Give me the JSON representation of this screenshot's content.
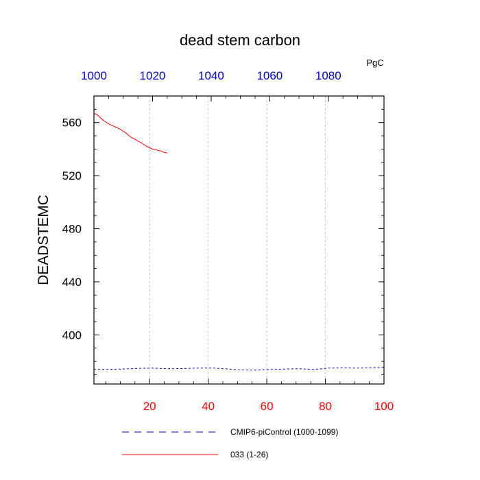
{
  "chart_data": {
    "type": "line",
    "title": "dead stem carbon",
    "units": "PgC",
    "ylabel": "DEADSTEMC",
    "xlabel": "",
    "bottom_axis": {
      "range": [
        1,
        100
      ],
      "ticks": [
        20,
        40,
        60,
        80,
        100
      ],
      "tick_labels": [
        "20",
        "40",
        "60",
        "80",
        "100"
      ],
      "label_color": "#ff0000"
    },
    "top_axis": {
      "range": [
        1000,
        1099
      ],
      "ticks": [
        1000,
        1020,
        1040,
        1060,
        1080
      ],
      "tick_labels": [
        "1000",
        "1020",
        "1040",
        "1060",
        "1080"
      ],
      "label_color": "#0000cc"
    },
    "yaxis": {
      "range": [
        363,
        580
      ],
      "ticks": [
        400,
        440,
        480,
        520,
        560
      ],
      "tick_labels": [
        "400",
        "440",
        "480",
        "520",
        "560"
      ]
    },
    "grid": "vertical dashed at x ticks",
    "legend_position": "bottom",
    "series": [
      {
        "name": "CMIP6-piControl (1000-1099)",
        "color": "#0000cc",
        "style": "dashed",
        "x": [
          1,
          6,
          11,
          16,
          21,
          26,
          31,
          36,
          41,
          46,
          51,
          56,
          61,
          66,
          71,
          76,
          81,
          86,
          91,
          96,
          100
        ],
        "values": [
          374,
          374,
          374.3,
          374.8,
          375,
          374.5,
          374.6,
          375,
          375.1,
          374.4,
          373.6,
          373.5,
          373.9,
          374.2,
          374.5,
          373.9,
          375,
          375.2,
          375,
          375.3,
          375.5
        ]
      },
      {
        "name": "033 (1-26)",
        "color": "#ff0000",
        "style": "solid",
        "x": [
          1,
          2,
          3,
          4,
          5,
          6,
          7,
          8,
          9,
          10,
          11,
          12,
          13,
          14,
          15,
          16,
          17,
          18,
          19,
          20,
          21,
          22,
          23,
          24,
          25,
          26
        ],
        "values": [
          567,
          566,
          564,
          562,
          560.5,
          559,
          558,
          557,
          556,
          555,
          553.5,
          552,
          550,
          548.5,
          547.5,
          546,
          545,
          543.5,
          542,
          541,
          540,
          539.5,
          539,
          538.5,
          537.5,
          537
        ]
      }
    ]
  }
}
